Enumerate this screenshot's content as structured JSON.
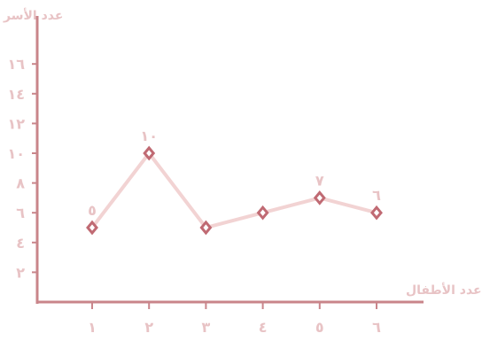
{
  "chart_data": {
    "type": "line",
    "xlabel": "عدد الأطفال",
    "ylabel": "عدد الأسر",
    "categories": [
      "١",
      "٢",
      "٣",
      "٤",
      "٥",
      "٦"
    ],
    "x": [
      1,
      2,
      3,
      4,
      5,
      6
    ],
    "y_ticks": [
      "٢",
      "٤",
      "٦",
      "٨",
      "١٠",
      "١٢",
      "١٤",
      "١٦"
    ],
    "ylim": [
      0,
      17.5
    ],
    "grid": false,
    "series": [
      {
        "values": [
          5,
          10,
          5,
          6,
          7,
          6
        ],
        "labels": [
          "٥",
          "١٠",
          "",
          "",
          "٧",
          "٦"
        ]
      }
    ],
    "colors": {
      "axis": "#c9858a",
      "line": "#f2d3d3",
      "marker_fill": "#ffffff",
      "marker_stroke": "#c06a73",
      "text": "#e8c3c5"
    }
  }
}
